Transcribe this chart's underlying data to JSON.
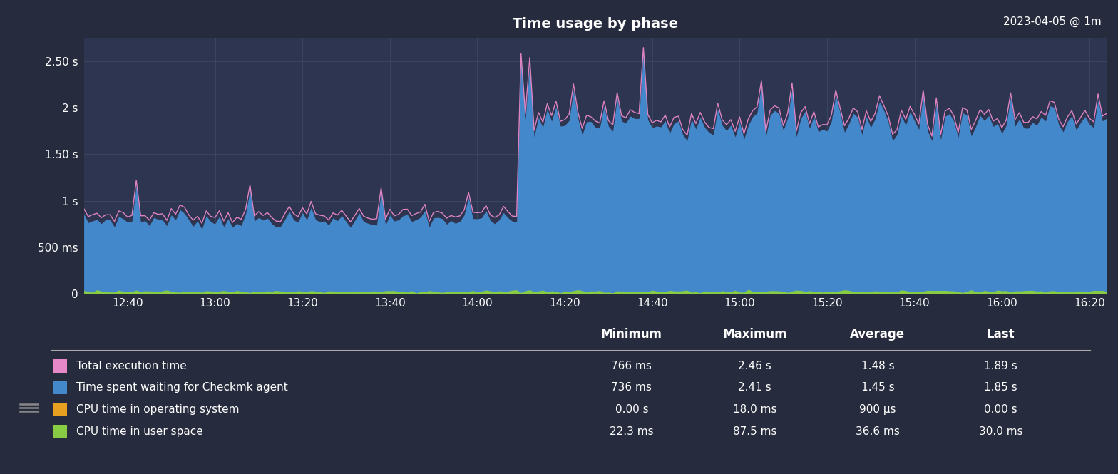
{
  "title": "Time usage by phase",
  "date_label": "2023-04-05 @ 1m",
  "bg_color": "#262b3d",
  "plot_bg_color": "#2d3550",
  "grid_color": "#3d4a62",
  "text_color": "#ffffff",
  "y_ticks": [
    0,
    0.5,
    1.0,
    1.5,
    2.0,
    2.5
  ],
  "y_tick_labels": [
    "0",
    "500 ms",
    "1 s",
    "1.50 s",
    "2 s",
    "2.50 s"
  ],
  "x_tick_labels": [
    "12:40",
    "13:00",
    "13:20",
    "13:40",
    "14:00",
    "14:20",
    "14:40",
    "15:00",
    "15:20",
    "15:40",
    "16:00",
    "16:20"
  ],
  "ylim": [
    0,
    2.75
  ],
  "n_points": 235,
  "transition_idx": 100,
  "series_colors": {
    "total": "#e888c8",
    "waiting": "#4488cc",
    "cpu_os": "#e8a020",
    "cpu_user": "#88cc44"
  },
  "col_header_labels": [
    "Minimum",
    "Maximum",
    "Average",
    "Last"
  ],
  "legend": [
    {
      "label": "Total execution time",
      "color": "#e888c8",
      "min": "766 ms",
      "max": "2.46 s",
      "avg": "1.48 s",
      "last": "1.89 s"
    },
    {
      "label": "Time spent waiting for Checkmk agent",
      "color": "#4488cc",
      "min": "736 ms",
      "max": "2.41 s",
      "avg": "1.45 s",
      "last": "1.85 s"
    },
    {
      "label": "CPU time in operating system",
      "color": "#e8a020",
      "min": "0.00 s",
      "max": "18.0 ms",
      "avg": "900 μs",
      "last": "0.00 s"
    },
    {
      "label": "CPU time in user space",
      "color": "#88cc44",
      "min": "22.3 ms",
      "max": "87.5 ms",
      "avg": "36.6 ms",
      "last": "30.0 ms"
    }
  ]
}
